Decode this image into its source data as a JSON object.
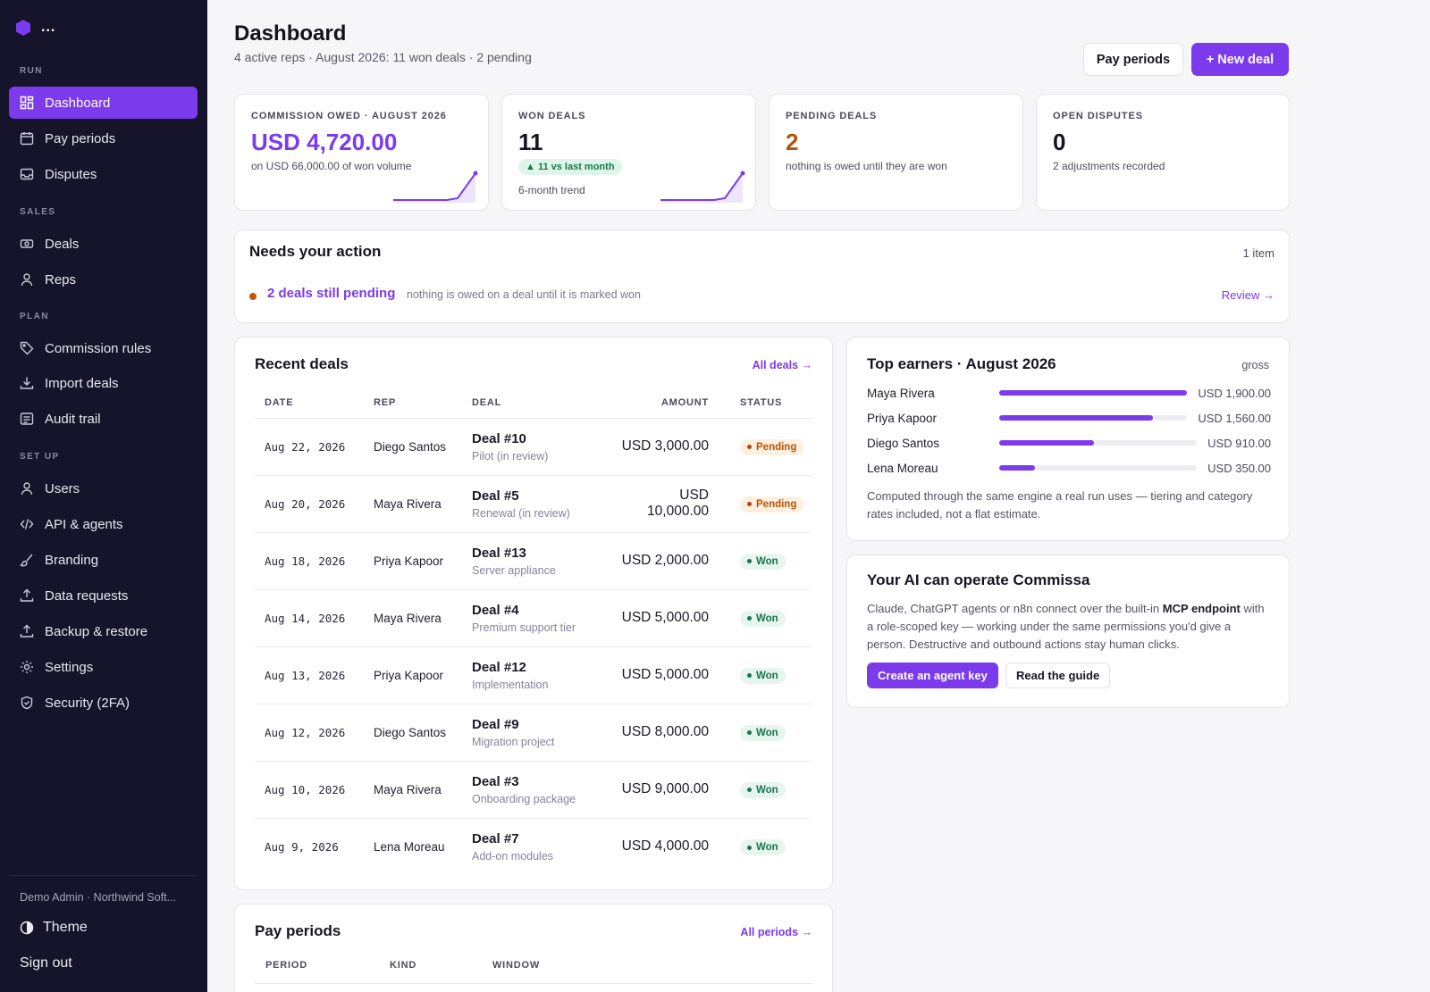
{
  "brand": {
    "name": "..."
  },
  "sidebar": {
    "sections": [
      {
        "label": "RUN",
        "items": [
          {
            "label": "Dashboard",
            "icon": "grid-icon",
            "active": true
          },
          {
            "label": "Pay periods",
            "icon": "calendar-icon"
          },
          {
            "label": "Disputes",
            "icon": "inbox-icon"
          }
        ]
      },
      {
        "label": "SALES",
        "items": [
          {
            "label": "Deals",
            "icon": "banknote-icon"
          },
          {
            "label": "Reps",
            "icon": "user-icon"
          }
        ]
      },
      {
        "label": "PLAN",
        "items": [
          {
            "label": "Commission rules",
            "icon": "tag-icon"
          },
          {
            "label": "Import deals",
            "icon": "download-icon"
          },
          {
            "label": "Audit trail",
            "icon": "list-icon"
          }
        ]
      },
      {
        "label": "SET UP",
        "items": [
          {
            "label": "Users",
            "icon": "user-icon"
          },
          {
            "label": "API & agents",
            "icon": "code-icon"
          },
          {
            "label": "Branding",
            "icon": "brush-icon"
          },
          {
            "label": "Data requests",
            "icon": "upload-icon"
          },
          {
            "label": "Backup & restore",
            "icon": "upload-icon"
          },
          {
            "label": "Settings",
            "icon": "gear-icon"
          },
          {
            "label": "Security (2FA)",
            "icon": "shield-icon"
          }
        ]
      }
    ],
    "org": "Demo Admin · Northwind Soft...",
    "theme": "Theme",
    "signout": "Sign out"
  },
  "header": {
    "title": "Dashboard",
    "subtitle": "4 active reps · August 2026: 11 won deals · 2 pending",
    "pay_periods_btn": "Pay periods",
    "new_deal_btn": "+ New deal"
  },
  "kpis": [
    {
      "label": "COMMISSION OWED · AUGUST 2026",
      "value": "USD 4,720.00",
      "note": "on USD 66,000.00 of won volume",
      "color": "#7c3aed"
    },
    {
      "label": "WON DEALS",
      "value": "11",
      "pill": "▲ 11 vs last month",
      "note": "6-month trend",
      "color": "#16151f"
    },
    {
      "label": "PENDING DEALS",
      "value": "2",
      "note": "nothing is owed until they are won",
      "color": "#b45309"
    },
    {
      "label": "OPEN DISPUTES",
      "value": "0",
      "note": "2 adjustments recorded",
      "color": "#16151f"
    }
  ],
  "action": {
    "title": "Needs your action",
    "count": "1 item",
    "link": "2 deals still pending",
    "note": "nothing is owed on a deal until it is marked won",
    "review": "Review →"
  },
  "recent_deals": {
    "title": "Recent deals",
    "link": "All deals →",
    "columns": [
      "DATE",
      "REP",
      "DEAL",
      "AMOUNT",
      "STATUS"
    ],
    "rows": [
      {
        "date": "Aug 22, 2026",
        "rep": "Diego Santos",
        "deal": "Deal #10",
        "sub": "Pilot (in review)",
        "amount": "USD 3,000.00",
        "status": "Pending"
      },
      {
        "date": "Aug 20, 2026",
        "rep": "Maya Rivera",
        "deal": "Deal #5",
        "sub": "Renewal (in review)",
        "amount": "USD 10,000.00",
        "status": "Pending"
      },
      {
        "date": "Aug 18, 2026",
        "rep": "Priya Kapoor",
        "deal": "Deal #13",
        "sub": "Server appliance",
        "amount": "USD 2,000.00",
        "status": "Won"
      },
      {
        "date": "Aug 14, 2026",
        "rep": "Maya Rivera",
        "deal": "Deal #4",
        "sub": "Premium support tier",
        "amount": "USD 5,000.00",
        "status": "Won"
      },
      {
        "date": "Aug 13, 2026",
        "rep": "Priya Kapoor",
        "deal": "Deal #12",
        "sub": "Implementation",
        "amount": "USD 5,000.00",
        "status": "Won"
      },
      {
        "date": "Aug 12, 2026",
        "rep": "Diego Santos",
        "deal": "Deal #9",
        "sub": "Migration project",
        "amount": "USD 8,000.00",
        "status": "Won"
      },
      {
        "date": "Aug 10, 2026",
        "rep": "Maya Rivera",
        "deal": "Deal #3",
        "sub": "Onboarding package",
        "amount": "USD 9,000.00",
        "status": "Won"
      },
      {
        "date": "Aug 9, 2026",
        "rep": "Lena Moreau",
        "deal": "Deal #7",
        "sub": "Add-on modules",
        "amount": "USD 4,000.00",
        "status": "Won"
      }
    ]
  },
  "top_earners": {
    "title": "Top earners · August 2026",
    "tag": "gross",
    "earners": [
      {
        "name": "Maya Rivera",
        "amount": "USD 1,900.00",
        "share": 1.0
      },
      {
        "name": "Priya Kapoor",
        "amount": "USD 1,560.00",
        "share": 0.82
      },
      {
        "name": "Diego Santos",
        "amount": "USD 910.00",
        "share": 0.48
      },
      {
        "name": "Lena Moreau",
        "amount": "USD 350.00",
        "share": 0.18
      }
    ],
    "note": "Computed through the same engine a real run uses — tiering and category rates included, not a flat estimate."
  },
  "ai": {
    "title": "Your AI can operate Commissa",
    "body_1": "Claude, ChatGPT agents or n8n connect over the built-in ",
    "body_bold": "MCP endpoint",
    "body_2": " with a role-scoped key — working under the same permissions you'd give a person. Destructive and outbound actions stay human clicks.",
    "create_btn": "Create an agent key",
    "guide_btn": "Read the guide"
  },
  "pay_periods": {
    "title": "Pay periods",
    "link": "All periods →",
    "columns": [
      "PERIOD",
      "KIND",
      "WINDOW"
    ]
  }
}
